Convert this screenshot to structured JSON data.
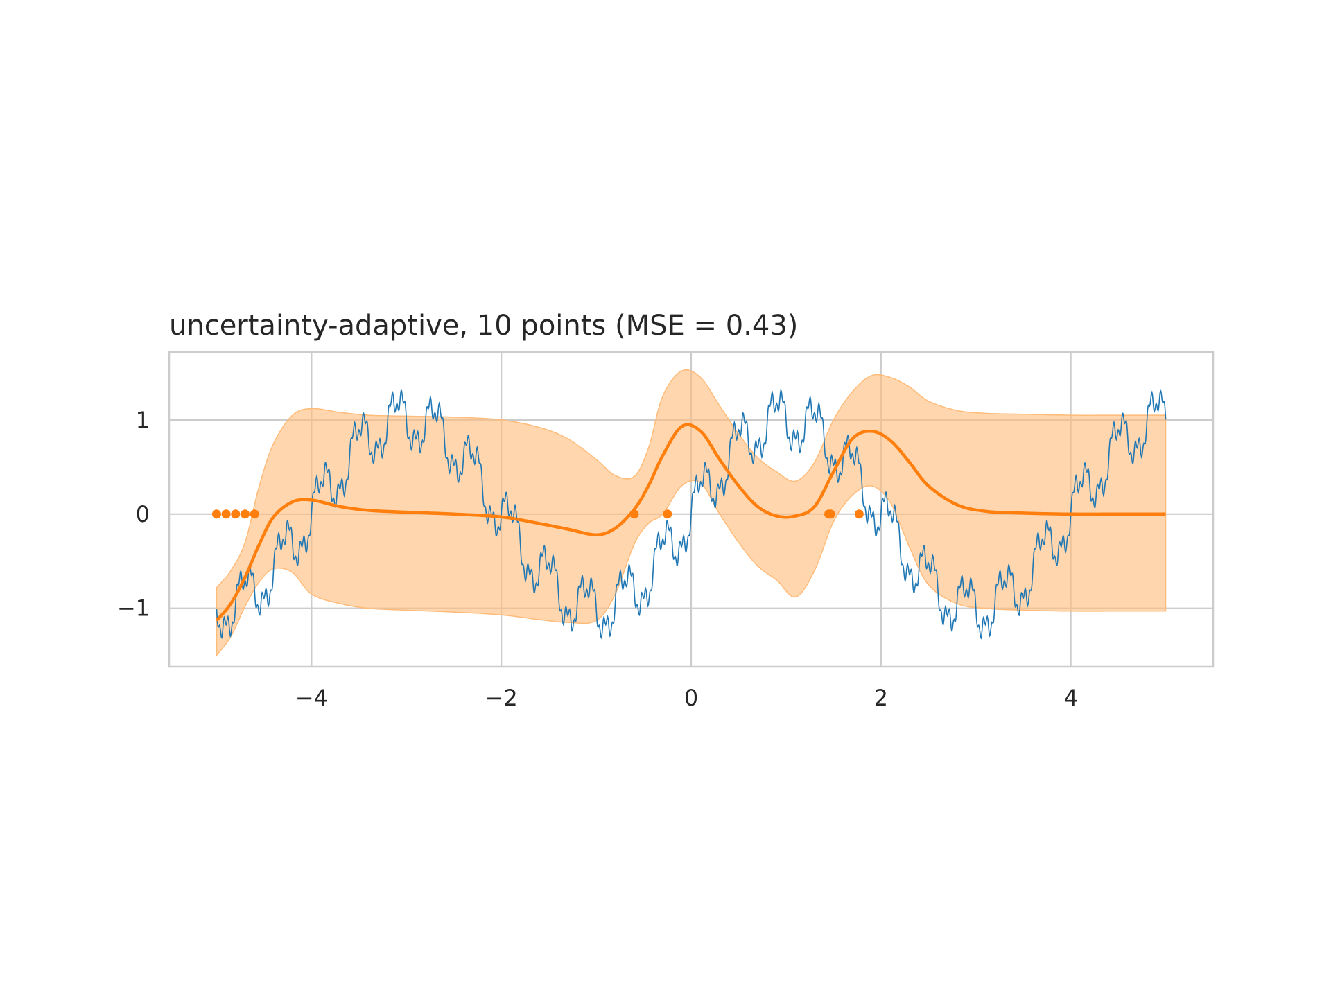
{
  "chart_data": {
    "type": "line",
    "title": "uncertainty-adaptive, 10 points (MSE = 0.43)",
    "xlabel": "",
    "ylabel": "",
    "xlim": [
      -5.5,
      5.5
    ],
    "ylim": [
      -1.62,
      1.72
    ],
    "grid": true,
    "x_ticks": [
      -4,
      -2,
      0,
      2,
      4
    ],
    "x_tick_labels": [
      "−4",
      "−2",
      "0",
      "2",
      "4"
    ],
    "y_ticks": [
      -1,
      0,
      1
    ],
    "y_tick_labels": [
      "−1",
      "0",
      "1"
    ],
    "colors": {
      "true_function": "#1f77b4",
      "prediction": "#ff7f0e",
      "band_fill": "#ffbb78",
      "grid": "#cccccc",
      "spine": "#cccccc"
    },
    "true_function": {
      "description": "sin(x*pi/2) plus Weierstrass-style high-frequency terms",
      "x_range": [
        -5,
        5
      ],
      "samples": 2000,
      "terms": [
        {
          "amplitude": 1.0,
          "frequency": 1.5708
        },
        {
          "amplitude": 0.25,
          "frequency": 15.708
        },
        {
          "amplitude": 0.125,
          "frequency": 47.12
        },
        {
          "amplitude": 0.0625,
          "frequency": 141.37
        }
      ]
    },
    "observed_points": {
      "x": [
        -5.0,
        -4.9,
        -4.8,
        -4.7,
        -4.6,
        -0.6,
        -0.25,
        1.45,
        1.47,
        1.77
      ],
      "y": [
        0,
        0,
        0,
        0,
        0,
        0,
        0,
        0,
        0,
        0
      ]
    },
    "mean_curve": {
      "x": [
        -5.0,
        -4.85,
        -4.7,
        -4.55,
        -4.4,
        -4.2,
        -4.0,
        -3.7,
        -3.4,
        -3.0,
        -2.5,
        -2.0,
        -1.6,
        -1.3,
        -1.0,
        -0.8,
        -0.6,
        -0.45,
        -0.3,
        -0.1,
        0.1,
        0.3,
        0.5,
        0.7,
        0.9,
        1.1,
        1.3,
        1.5,
        1.7,
        1.9,
        2.1,
        2.3,
        2.5,
        2.8,
        3.1,
        3.5,
        4.0,
        4.5,
        5.0
      ],
      "y": [
        -1.13,
        -0.95,
        -0.67,
        -0.32,
        -0.03,
        0.13,
        0.15,
        0.08,
        0.04,
        0.02,
        0.0,
        -0.03,
        -0.1,
        -0.16,
        -0.22,
        -0.15,
        0.05,
        0.3,
        0.62,
        0.93,
        0.88,
        0.58,
        0.3,
        0.08,
        -0.02,
        -0.02,
        0.08,
        0.45,
        0.8,
        0.88,
        0.78,
        0.55,
        0.3,
        0.1,
        0.03,
        0.01,
        0.0,
        0.0,
        0.0
      ]
    },
    "band_upper": {
      "x": [
        -5.0,
        -4.85,
        -4.7,
        -4.55,
        -4.4,
        -4.2,
        -4.0,
        -3.7,
        -3.4,
        -3.0,
        -2.5,
        -2.0,
        -1.6,
        -1.3,
        -1.0,
        -0.8,
        -0.6,
        -0.45,
        -0.3,
        -0.1,
        0.1,
        0.3,
        0.5,
        0.7,
        0.9,
        1.1,
        1.3,
        1.5,
        1.7,
        1.9,
        2.1,
        2.3,
        2.5,
        2.8,
        3.1,
        3.5,
        4.0,
        4.5,
        5.0
      ],
      "y": [
        -0.78,
        -0.6,
        -0.3,
        0.3,
        0.75,
        1.05,
        1.12,
        1.08,
        1.05,
        1.04,
        1.03,
        1.0,
        0.92,
        0.8,
        0.58,
        0.41,
        0.4,
        0.7,
        1.25,
        1.52,
        1.45,
        1.15,
        0.85,
        0.6,
        0.45,
        0.35,
        0.55,
        1.0,
        1.3,
        1.47,
        1.45,
        1.35,
        1.2,
        1.1,
        1.07,
        1.06,
        1.05,
        1.05,
        1.05
      ]
    },
    "band_lower": {
      "x": [
        -5.0,
        -4.85,
        -4.7,
        -4.55,
        -4.4,
        -4.2,
        -4.0,
        -3.7,
        -3.4,
        -3.0,
        -2.5,
        -2.0,
        -1.6,
        -1.3,
        -1.0,
        -0.8,
        -0.6,
        -0.45,
        -0.3,
        -0.1,
        0.1,
        0.3,
        0.5,
        0.7,
        0.9,
        1.1,
        1.3,
        1.5,
        1.7,
        1.9,
        2.1,
        2.3,
        2.5,
        2.8,
        3.1,
        3.5,
        4.0,
        4.5,
        5.0
      ],
      "y": [
        -1.5,
        -1.3,
        -0.98,
        -0.72,
        -0.58,
        -0.62,
        -0.85,
        -0.95,
        -1.0,
        -1.02,
        -1.04,
        -1.07,
        -1.12,
        -1.15,
        -1.13,
        -0.85,
        -0.32,
        -0.1,
        0.0,
        0.3,
        0.33,
        0.0,
        -0.3,
        -0.55,
        -0.7,
        -0.88,
        -0.6,
        -0.08,
        0.2,
        0.3,
        0.12,
        -0.35,
        -0.75,
        -0.95,
        -1.0,
        -1.02,
        -1.03,
        -1.03,
        -1.03
      ]
    }
  }
}
